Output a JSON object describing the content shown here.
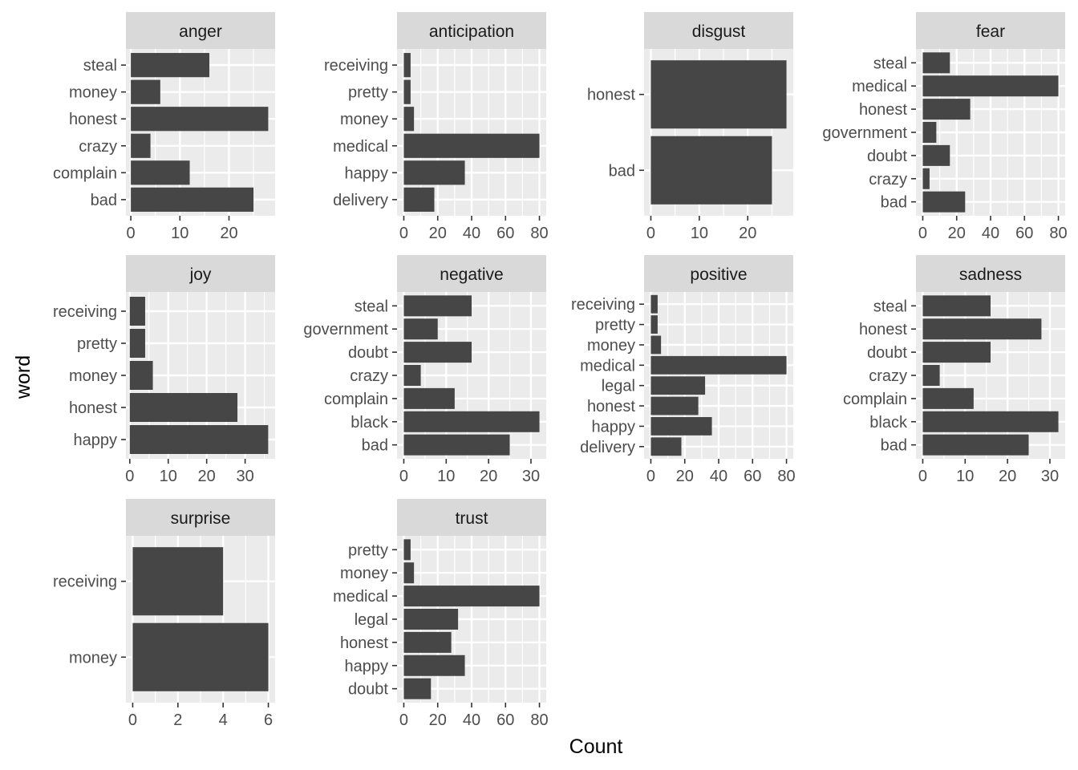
{
  "colors": {
    "panel_bg": "#EBEBEB",
    "grid": "#FFFFFF",
    "strip_bg": "#D9D9D9",
    "bar": "#464646",
    "tick": "#333333"
  },
  "chart_data": {
    "type": "bar",
    "orientation": "horizontal",
    "faceted": true,
    "xlabel": "Count",
    "ylabel": "word",
    "grid": true,
    "legend": "none",
    "facets": [
      {
        "name": "anger",
        "categories": [
          "steal",
          "money",
          "honest",
          "crazy",
          "complain",
          "bad"
        ],
        "values": [
          16,
          6,
          28,
          4,
          12,
          25
        ],
        "xlim": [
          -1,
          29.4
        ],
        "xticks": [
          0,
          10,
          20
        ],
        "xtick_labels": [
          "0",
          "10",
          "20"
        ]
      },
      {
        "name": "anticipation",
        "categories": [
          "receiving",
          "pretty",
          "money",
          "medical",
          "happy",
          "delivery"
        ],
        "values": [
          4,
          4,
          6,
          80,
          36,
          18
        ],
        "xlim": [
          -4,
          84
        ],
        "xticks": [
          0,
          20,
          40,
          60,
          80
        ],
        "xtick_labels": [
          "0",
          "20",
          "40",
          "60",
          "80"
        ]
      },
      {
        "name": "disgust",
        "categories": [
          "honest",
          "bad"
        ],
        "values": [
          28,
          25
        ],
        "xlim": [
          -1.4,
          29.4
        ],
        "xticks": [
          0,
          10,
          20
        ],
        "xtick_labels": [
          "0",
          "10",
          "20"
        ]
      },
      {
        "name": "fear",
        "categories": [
          "steal",
          "medical",
          "honest",
          "government",
          "doubt",
          "crazy",
          "bad"
        ],
        "values": [
          16,
          80,
          28,
          8,
          16,
          4,
          25
        ],
        "xlim": [
          -4,
          84
        ],
        "xticks": [
          0,
          20,
          40,
          60,
          80
        ],
        "xtick_labels": [
          "0",
          "20",
          "40",
          "60",
          "80"
        ]
      },
      {
        "name": "joy",
        "categories": [
          "receiving",
          "pretty",
          "money",
          "honest",
          "happy"
        ],
        "values": [
          4,
          4,
          6,
          28,
          36
        ],
        "xlim": [
          -1,
          37.8
        ],
        "xticks": [
          0,
          10,
          20,
          30
        ],
        "xtick_labels": [
          "0",
          "10",
          "20",
          "30"
        ]
      },
      {
        "name": "negative",
        "categories": [
          "steal",
          "government",
          "doubt",
          "crazy",
          "complain",
          "black",
          "bad"
        ],
        "values": [
          16,
          8,
          16,
          4,
          12,
          32,
          25
        ],
        "xlim": [
          -1.6,
          33.6
        ],
        "xticks": [
          0,
          10,
          20,
          30
        ],
        "xtick_labels": [
          "0",
          "10",
          "20",
          "30"
        ]
      },
      {
        "name": "positive",
        "categories": [
          "receiving",
          "pretty",
          "money",
          "medical",
          "legal",
          "honest",
          "happy",
          "delivery"
        ],
        "values": [
          4,
          4,
          6,
          80,
          32,
          28,
          36,
          18
        ],
        "xlim": [
          -4,
          84
        ],
        "xticks": [
          0,
          20,
          40,
          60,
          80
        ],
        "xtick_labels": [
          "0",
          "20",
          "40",
          "60",
          "80"
        ]
      },
      {
        "name": "sadness",
        "categories": [
          "steal",
          "honest",
          "doubt",
          "crazy",
          "complain",
          "black",
          "bad"
        ],
        "values": [
          16,
          28,
          16,
          4,
          12,
          32,
          25
        ],
        "xlim": [
          -1.6,
          33.6
        ],
        "xticks": [
          0,
          10,
          20,
          30
        ],
        "xtick_labels": [
          "0",
          "10",
          "20",
          "30"
        ]
      },
      {
        "name": "surprise",
        "categories": [
          "receiving",
          "money"
        ],
        "values": [
          4,
          6
        ],
        "xlim": [
          -0.3,
          6.3
        ],
        "xticks": [
          0,
          2,
          4,
          6
        ],
        "xtick_labels": [
          "0",
          "2",
          "4",
          "6"
        ]
      },
      {
        "name": "trust",
        "categories": [
          "pretty",
          "money",
          "medical",
          "legal",
          "honest",
          "happy",
          "doubt"
        ],
        "values": [
          4,
          6,
          80,
          32,
          28,
          36,
          16
        ],
        "xlim": [
          -4,
          84
        ],
        "xticks": [
          0,
          20,
          40,
          60,
          80
        ],
        "xtick_labels": [
          "0",
          "20",
          "40",
          "60",
          "80"
        ]
      }
    ]
  }
}
